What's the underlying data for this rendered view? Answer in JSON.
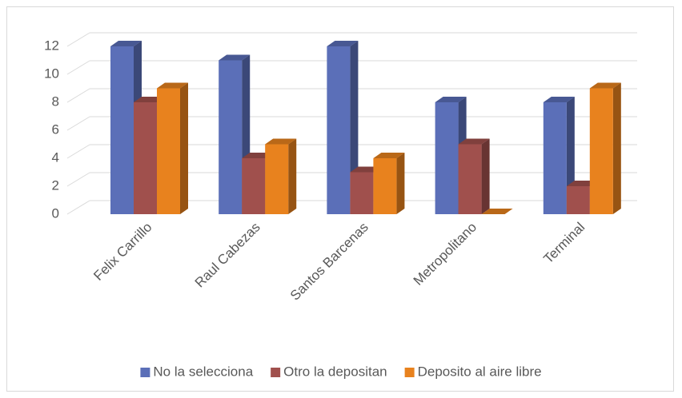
{
  "chart_data": {
    "type": "bar3d",
    "categories": [
      "Felix Carrillo",
      "Raul Cabezas",
      "Santos Barcenas",
      "Metropolitano",
      "Terminal"
    ],
    "series": [
      {
        "name": "No la selecciona",
        "color": "#5b6fb8",
        "values": [
          12,
          11,
          12,
          8,
          8
        ]
      },
      {
        "name": "Otro la depositan",
        "color": "#a0504d",
        "values": [
          8,
          4,
          3,
          5,
          2
        ]
      },
      {
        "name": "Deposito al aire libre",
        "color": "#e8821e",
        "values": [
          9,
          5,
          4,
          0,
          9
        ]
      }
    ],
    "ylim": [
      0,
      12
    ],
    "yticks": [
      0,
      2,
      4,
      6,
      8,
      10,
      12
    ],
    "grid": true,
    "legend": "bottom"
  }
}
